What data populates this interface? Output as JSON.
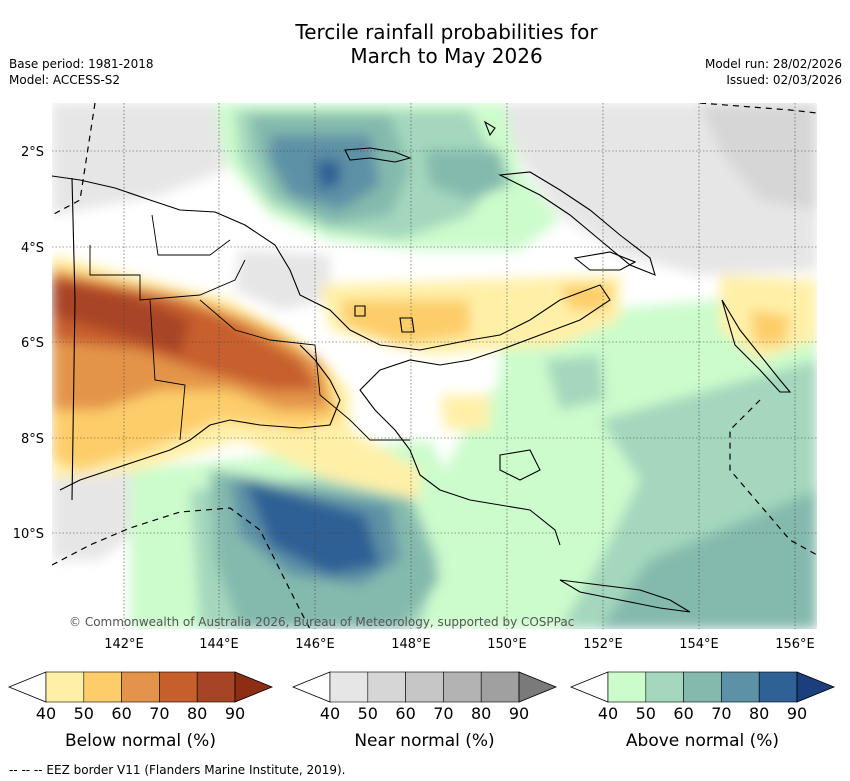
{
  "header": {
    "title_line1": "Tercile rainfall probabilities for",
    "title_line2": "March to May 2026",
    "base_period": "Base period: 1981-2018",
    "model": "Model: ACCESS-S2",
    "model_run": "Model run: 28/02/2026",
    "issued": "Issued: 02/03/2026"
  },
  "map": {
    "lat_ticks": [
      "2°S",
      "4°S",
      "6°S",
      "8°S",
      "10°S"
    ],
    "lon_ticks": [
      "142°E",
      "144°E",
      "146°E",
      "148°E",
      "150°E",
      "152°E",
      "154°E",
      "156°E"
    ],
    "copyright": "© Commonwealth of Australia 2026, Bureau of Meteorology, supported by COSPPac"
  },
  "colorbars": [
    {
      "title": "Below normal (%)",
      "levels": [
        "40",
        "50",
        "60",
        "70",
        "80",
        "90"
      ],
      "colors": [
        "#fff0a8",
        "#fdcd6a",
        "#e3944a",
        "#c75f2d",
        "#a84426",
        "#8b2e14"
      ]
    },
    {
      "title": "Near normal (%)",
      "levels": [
        "40",
        "50",
        "60",
        "70",
        "80",
        "90"
      ],
      "colors": [
        "#e6e6e6",
        "#d6d6d6",
        "#c6c6c6",
        "#b3b3b3",
        "#a0a0a0",
        "#7a7a7a"
      ]
    },
    {
      "title": "Above normal (%)",
      "levels": [
        "40",
        "50",
        "60",
        "70",
        "80",
        "90"
      ],
      "colors": [
        "#ccfccc",
        "#a4d7bd",
        "#84b9ad",
        "#5d91a6",
        "#2f6195",
        "#1b3f7d"
      ]
    }
  ],
  "footer": "--  --  -- EEZ border V11 (Flanders Marine Institute, 2019)."
}
